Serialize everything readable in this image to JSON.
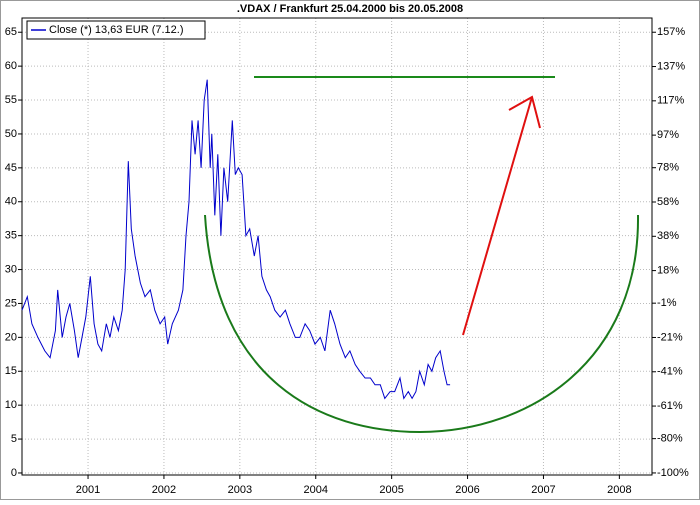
{
  "chart_data": {
    "type": "line",
    "title": ".VDAX / Frankfurt 25.04.2000 bis 20.05.2008",
    "x": [
      2000.13,
      2000.2,
      2000.26,
      2000.34,
      2000.43,
      2000.5,
      2000.57,
      2000.6,
      2000.66,
      2000.71,
      2000.76,
      2000.82,
      2000.87,
      2000.92,
      2000.97,
      2001.03,
      2001.08,
      2001.13,
      2001.18,
      2001.24,
      2001.29,
      2001.34,
      2001.4,
      2001.45,
      2001.49,
      2001.53,
      2001.57,
      2001.62,
      2001.69,
      2001.75,
      2001.82,
      2001.88,
      2001.95,
      2002.01,
      2002.05,
      2002.11,
      2002.19,
      2002.25,
      2002.29,
      2002.33,
      2002.37,
      2002.41,
      2002.45,
      2002.49,
      2002.53,
      2002.57,
      2002.61,
      2002.63,
      2002.67,
      2002.71,
      2002.75,
      2002.79,
      2002.84,
      2002.9,
      2002.94,
      2002.98,
      2003.03,
      2003.08,
      2003.13,
      2003.19,
      2003.24,
      2003.29,
      2003.35,
      2003.4,
      2003.46,
      2003.53,
      2003.6,
      2003.66,
      2003.73,
      2003.79,
      2003.86,
      2003.92,
      2003.99,
      2004.06,
      2004.12,
      2004.19,
      2004.25,
      2004.32,
      2004.39,
      2004.45,
      2004.52,
      2004.58,
      2004.65,
      2004.72,
      2004.78,
      2004.85,
      2004.91,
      2004.98,
      2005.04,
      2005.11,
      2005.16,
      2005.22,
      2005.27,
      2005.32,
      2005.37,
      2005.43,
      2005.48,
      2005.53,
      2005.58,
      2005.64,
      2005.69,
      2005.73,
      2005.77
    ],
    "series": [
      {
        "name": "Close (*) 13,63 EUR (7.12.)",
        "color": "#0000cc",
        "values": [
          24,
          26,
          22,
          20,
          18,
          17,
          21,
          27,
          20,
          23,
          25,
          21,
          17,
          20,
          23,
          29,
          22,
          19,
          18,
          22,
          20,
          23,
          21,
          24,
          30,
          46,
          36,
          32,
          28,
          26,
          27,
          24,
          22,
          23,
          19,
          22,
          24,
          27,
          35,
          40,
          52,
          47,
          52,
          45,
          55,
          58,
          45,
          50,
          38,
          47,
          35,
          45,
          40,
          52,
          44,
          45,
          44,
          35,
          36,
          32,
          35,
          29,
          27,
          26,
          24,
          23,
          24,
          22,
          20,
          20,
          22,
          21,
          19,
          20,
          18,
          24,
          22,
          19,
          17,
          18,
          16,
          15,
          14,
          14,
          13,
          13,
          11,
          12,
          12,
          14,
          11,
          12,
          11,
          12,
          15,
          13,
          16,
          15,
          17,
          18,
          15,
          13,
          13
        ]
      }
    ],
    "xlim": [
      2000.13,
      2008.43
    ],
    "xticks": [
      2001,
      2002,
      2003,
      2004,
      2005,
      2006,
      2007,
      2008
    ],
    "ylim": [
      -0.3,
      67.1
    ],
    "yticks": [
      0,
      5,
      10,
      15,
      20,
      25,
      30,
      35,
      40,
      45,
      50,
      55,
      60,
      65
    ],
    "y2lim": [
      -101.2,
      165.3
    ],
    "y2ticks": [
      {
        "value": -100,
        "label": "-100%"
      },
      {
        "value": -80,
        "label": "-80%"
      },
      {
        "value": -61,
        "label": "-61%"
      },
      {
        "value": -41,
        "label": "-41%"
      },
      {
        "value": -21,
        "label": "-21%"
      },
      {
        "value": -1,
        "label": "-1%"
      },
      {
        "value": 18,
        "label": "18%"
      },
      {
        "value": 38,
        "label": "38%"
      },
      {
        "value": 58,
        "label": "58%"
      },
      {
        "value": 78,
        "label": "78%"
      },
      {
        "value": 97,
        "label": "97%"
      },
      {
        "value": 117,
        "label": "117%"
      },
      {
        "value": 137,
        "label": "137%"
      },
      {
        "value": 157,
        "label": "157%"
      }
    ],
    "grid": true
  }
}
